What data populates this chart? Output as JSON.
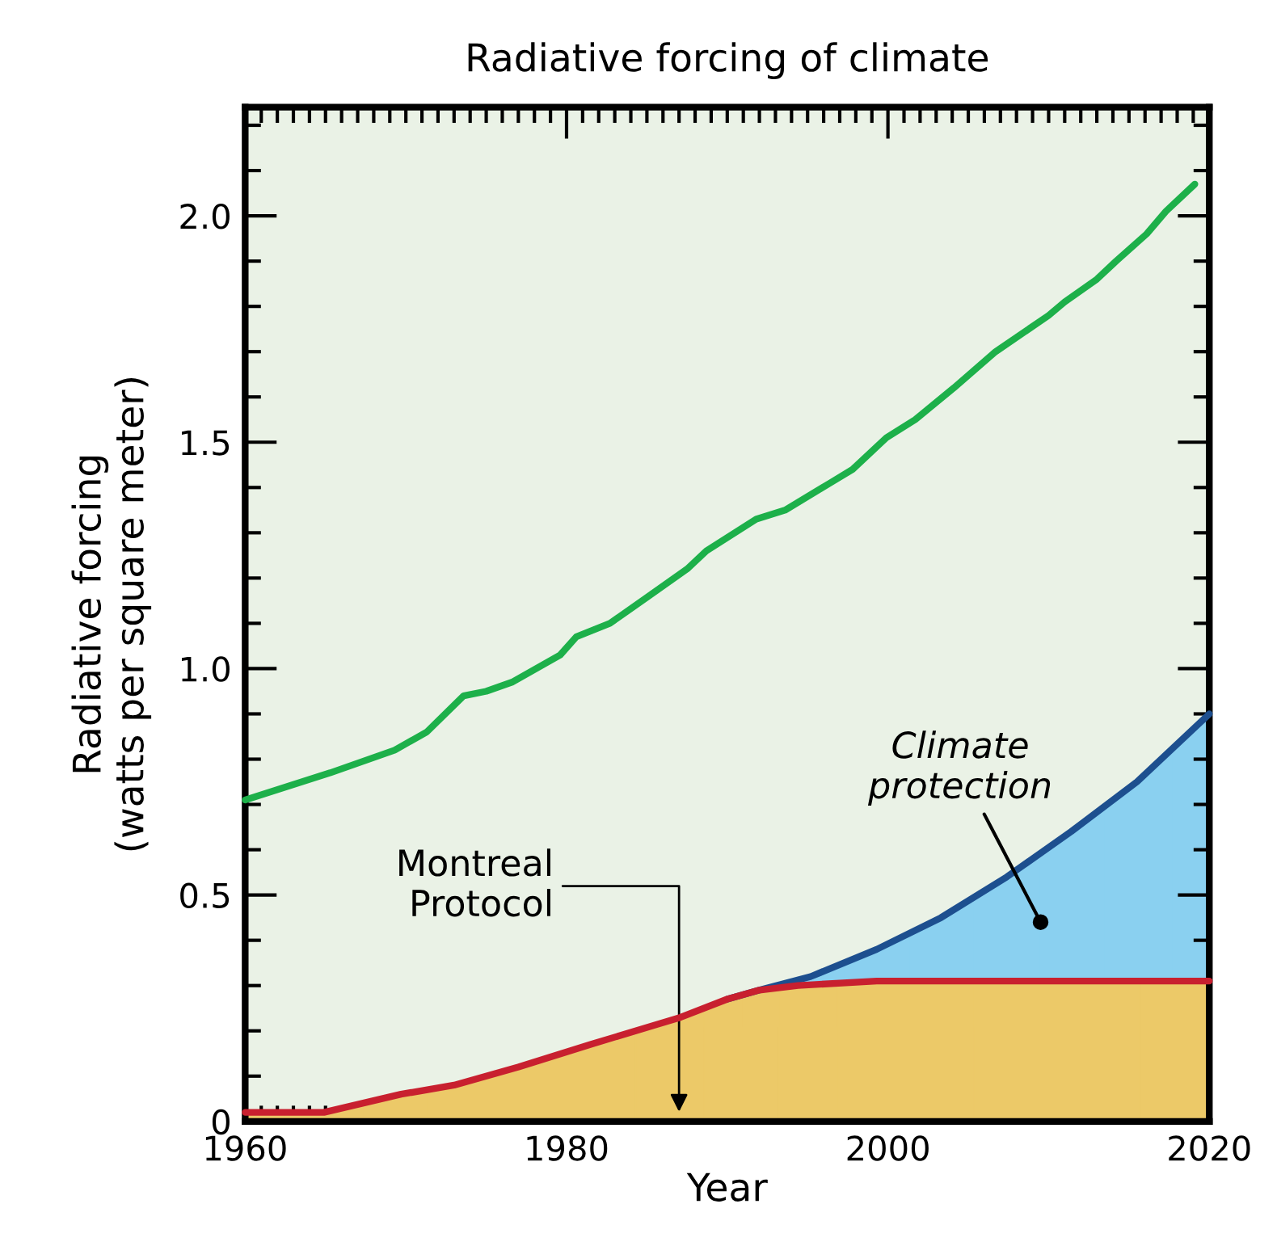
{
  "chart_data": {
    "type": "line",
    "title": "Radiative forcing of climate",
    "xlabel": "Year",
    "ylabel": "Radiative forcing\n(watts per square meter)",
    "xlim": [
      1960,
      2020
    ],
    "ylim": [
      0,
      2.24
    ],
    "xticks": [
      1960,
      1980,
      2000,
      2020,
      {
        "value": 1961,
        "label": null
      },
      {
        "value": 1962,
        "label": null
      },
      {
        "value": 1963,
        "label": null
      },
      {
        "value": 1964,
        "label": null
      },
      {
        "value": 1965,
        "label": null
      },
      {
        "value": 1966,
        "label": null
      },
      {
        "value": 1967,
        "label": null
      },
      {
        "value": 1968,
        "label": null
      },
      {
        "value": 1969,
        "label": null
      },
      {
        "value": 1970,
        "label": null
      },
      {
        "value": 1971,
        "label": null
      },
      {
        "value": 1972,
        "label": null
      },
      {
        "value": 1973,
        "label": null
      },
      {
        "value": 1974,
        "label": null
      },
      {
        "value": 1975,
        "label": null
      },
      {
        "value": 1976,
        "label": null
      },
      {
        "value": 1977,
        "label": null
      },
      {
        "value": 1978,
        "label": null
      },
      {
        "value": 1979,
        "label": null
      },
      {
        "value": 1981,
        "label": null
      },
      {
        "value": 1982,
        "label": null
      },
      {
        "value": 1983,
        "label": null
      },
      {
        "value": 1984,
        "label": null
      },
      {
        "value": 1985,
        "label": null
      },
      {
        "value": 1986,
        "label": null
      },
      {
        "value": 1987,
        "label": null
      },
      {
        "value": 1988,
        "label": null
      },
      {
        "value": 1989,
        "label": null
      },
      {
        "value": 1990,
        "label": null
      },
      {
        "value": 1991,
        "label": null
      },
      {
        "value": 1992,
        "label": null
      },
      {
        "value": 1993,
        "label": null
      },
      {
        "value": 1994,
        "label": null
      },
      {
        "value": 1995,
        "label": null
      },
      {
        "value": 1996,
        "label": null
      },
      {
        "value": 1997,
        "label": null
      },
      {
        "value": 1998,
        "label": null
      },
      {
        "value": 1999,
        "label": null
      },
      {
        "value": 2001,
        "label": null
      },
      {
        "value": 2002,
        "label": null
      },
      {
        "value": 2003,
        "label": null
      },
      {
        "value": 2004,
        "label": null
      },
      {
        "value": 2005,
        "label": null
      },
      {
        "value": 2006,
        "label": null
      },
      {
        "value": 2007,
        "label": null
      },
      {
        "value": 2008,
        "label": null
      },
      {
        "value": 2009,
        "label": null
      },
      {
        "value": 2010,
        "label": null
      },
      {
        "value": 2011,
        "label": null
      },
      {
        "value": 2012,
        "label": null
      },
      {
        "value": 2013,
        "label": null
      },
      {
        "value": 2014,
        "label": null
      },
      {
        "value": 2015,
        "label": null
      },
      {
        "value": 2016,
        "label": null
      },
      {
        "value": 2017,
        "label": null
      },
      {
        "value": 2018,
        "label": null
      },
      {
        "value": 2019,
        "label": null
      }
    ],
    "yticks": [
      0,
      {
        "value": 0.5,
        "label": "0.5"
      },
      {
        "value": 1.0,
        "label": "1.0"
      },
      {
        "value": 1.5,
        "label": "1.5"
      },
      {
        "value": 2.0,
        "label": "2.0"
      },
      {
        "value": 0.1,
        "label": null
      },
      {
        "value": 0.2,
        "label": null
      },
      {
        "value": 0.3,
        "label": null
      },
      {
        "value": 0.4,
        "label": null
      },
      {
        "value": 0.6,
        "label": null
      },
      {
        "value": 0.7,
        "label": null
      },
      {
        "value": 0.8,
        "label": null
      },
      {
        "value": 0.9,
        "label": null
      },
      {
        "value": 1.1,
        "label": null
      },
      {
        "value": 1.2,
        "label": null
      },
      {
        "value": 1.3,
        "label": null
      },
      {
        "value": 1.4,
        "label": null
      },
      {
        "value": 1.6,
        "label": null
      },
      {
        "value": 1.7,
        "label": null
      },
      {
        "value": 1.8,
        "label": null
      },
      {
        "value": 1.9,
        "label": null
      },
      {
        "value": 2.1,
        "label": null
      },
      {
        "value": 2.2,
        "label": null
      }
    ],
    "grid": false,
    "marker": "none",
    "line_style": "solid",
    "series": [
      {
        "color": "#1db04a",
        "x": [
          1960,
          1965.3,
          1969.3,
          1971.3,
          1973.6,
          1975,
          1976.6,
          1979.6,
          1980.6,
          1982.7,
          1985.1,
          1987.5,
          1988.7,
          1991.8,
          1993.6,
          1996.4,
          1997.8,
          1999.9,
          2001.7,
          2004.1,
          2006.7,
          2010.0,
          2011.0,
          2013.0,
          2014.2,
          2016.1,
          2017.3,
          2019.1
        ],
        "values": [
          0.71,
          0.77,
          0.82,
          0.86,
          0.94,
          0.95,
          0.97,
          1.03,
          1.07,
          1.1,
          1.16,
          1.22,
          1.26,
          1.33,
          1.35,
          1.41,
          1.44,
          1.51,
          1.55,
          1.62,
          1.7,
          1.78,
          1.81,
          1.86,
          1.9,
          1.96,
          2.01,
          2.07
        ]
      },
      {
        "type": "area",
        "color": "#1d4f8f",
        "colors": [
          "#8ad0f0",
          "#8ad0f0",
          "#8ad0f0",
          "#8ad0f0",
          "#8ad0f0",
          "#8ad0f0",
          "#8ad0f0",
          "#8ad0f0",
          "#8ad0f0"
        ],
        "x": [
          1990,
          1992,
          1995.2,
          1999.3,
          2003.3,
          2007.4,
          2011.4,
          2015.5,
          2020
        ],
        "values": [
          0.27,
          0.29,
          0.32,
          0.38,
          0.45,
          0.54,
          0.64,
          0.75,
          0.9
        ]
      },
      {
        "type": "area",
        "color": "#c8202f",
        "colors": [
          "#ecc968",
          "#ecc968",
          "#ecc968",
          "#ecc968",
          "#ecc968",
          "#ecc968",
          "#ecc968",
          "#ecc968",
          "#ecc968",
          "#ecc968",
          "#ecc968",
          "#ecc968",
          "#ecc968"
        ],
        "x": [
          1960,
          1964.9,
          1969.7,
          1973,
          1977,
          1981.5,
          1987.1,
          1990,
          1992,
          1994.4,
          1999.3,
          2011.4,
          2020
        ],
        "values": [
          0.02,
          0.02,
          0.06,
          0.08,
          0.12,
          0.17,
          0.23,
          0.27,
          0.29,
          0.3,
          0.31,
          0.31,
          0.31
        ]
      }
    ],
    "annotations": [
      "Montreal\nProtocol",
      {
        "text": "Climate\nprotection",
        "x": 2009.5,
        "y": 0.44
      }
    ]
  }
}
